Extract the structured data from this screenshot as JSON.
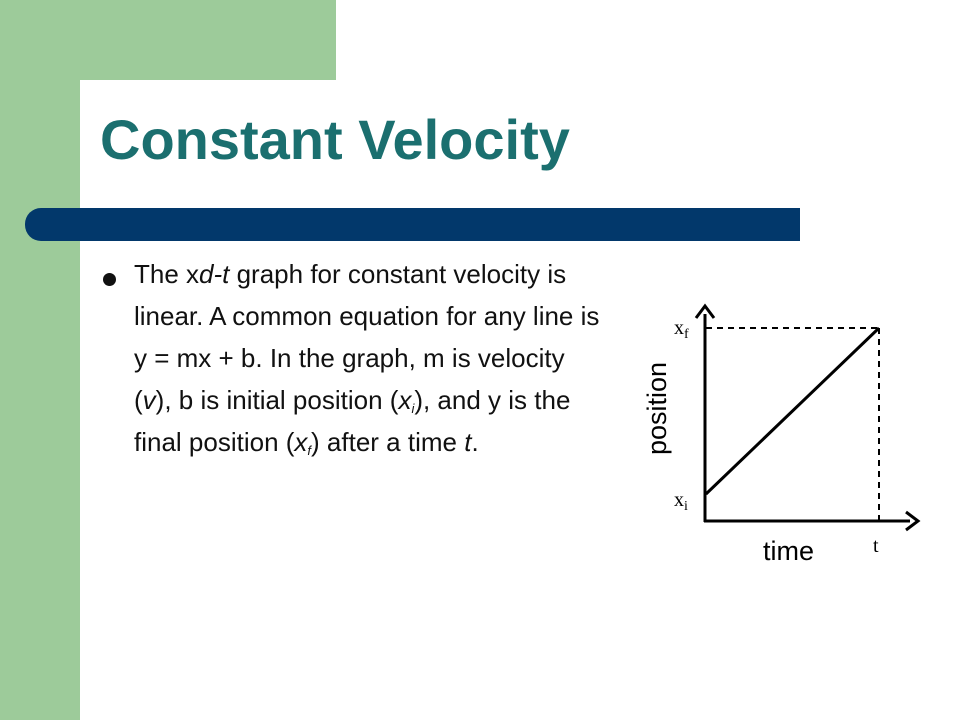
{
  "slide": {
    "title": "Constant Velocity",
    "bullet": {
      "part1": "The x",
      "part2": "d-t",
      "part3": " graph for constant velocity is linear.  A common equation for any line is y = mx + b.  In the graph, m is velocity (",
      "part4": "v",
      "part5": "), b is initial position (",
      "part6": "x",
      "part7": "i",
      "part8": "), and y is the final position (",
      "part9": "x",
      "part10": "f",
      "part11": ") after a time ",
      "part12": "t",
      "part13": "."
    }
  },
  "graph": {
    "y_axis_label": "position",
    "x_axis_label": "time",
    "xf_main": "x",
    "xf_sub": "f",
    "xi_main": "x",
    "xi_sub": "i",
    "t_label": "t"
  },
  "colors": {
    "green": "#9dcb9a",
    "title_teal": "#1b6f6f",
    "bar_navy": "#02386b"
  }
}
